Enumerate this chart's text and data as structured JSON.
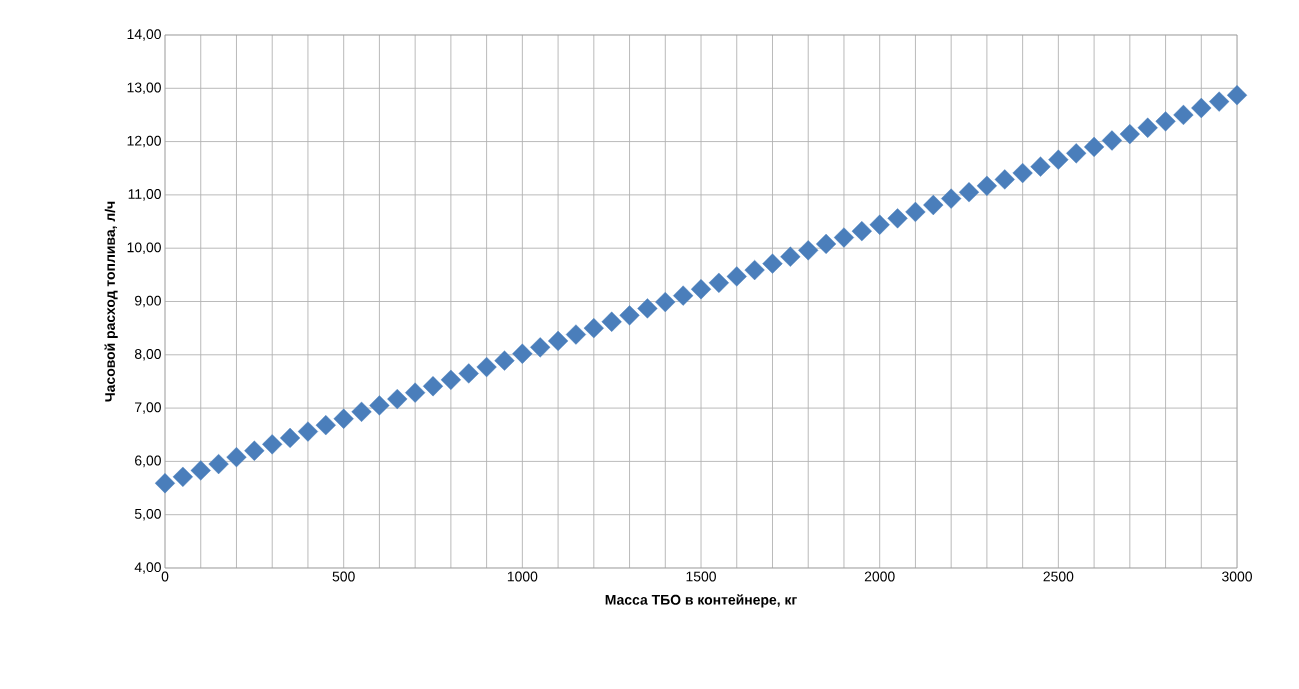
{
  "chart_data": {
    "type": "scatter",
    "xlabel": "Масса ТБО в контейнере, кг",
    "ylabel": "Часовой расход топлива, л/ч",
    "x": [
      0,
      50,
      100,
      150,
      200,
      250,
      300,
      350,
      400,
      450,
      500,
      550,
      600,
      650,
      700,
      750,
      800,
      850,
      900,
      950,
      1000,
      1050,
      1100,
      1150,
      1200,
      1250,
      1300,
      1350,
      1400,
      1450,
      1500,
      1550,
      1600,
      1650,
      1700,
      1750,
      1800,
      1850,
      1900,
      1950,
      2000,
      2050,
      2100,
      2150,
      2200,
      2250,
      2300,
      2350,
      2400,
      2450,
      2500,
      2550,
      2600,
      2650,
      2700,
      2750,
      2800,
      2850,
      2900,
      2950,
      3000
    ],
    "values": [
      5.59,
      5.71,
      5.83,
      5.95,
      6.08,
      6.2,
      6.32,
      6.44,
      6.56,
      6.68,
      6.8,
      6.93,
      7.05,
      7.17,
      7.29,
      7.41,
      7.53,
      7.65,
      7.77,
      7.89,
      8.02,
      8.14,
      8.26,
      8.38,
      8.5,
      8.62,
      8.74,
      8.87,
      8.99,
      9.11,
      9.23,
      9.35,
      9.47,
      9.59,
      9.71,
      9.84,
      9.96,
      10.08,
      10.2,
      10.32,
      10.44,
      10.56,
      10.68,
      10.81,
      10.93,
      11.05,
      11.17,
      11.29,
      11.41,
      11.53,
      11.66,
      11.78,
      11.9,
      12.02,
      12.14,
      12.26,
      12.38,
      12.5,
      12.63,
      12.75,
      12.87
    ],
    "color": "#4a7ebb",
    "marker": "diamond",
    "grid": true,
    "xlim": [
      0,
      3000
    ],
    "ylim": [
      4,
      14
    ],
    "xticks": [
      0,
      {
        "value": 100,
        "label": null
      },
      {
        "value": 200,
        "label": null
      },
      {
        "value": 300,
        "label": null
      },
      {
        "value": 400,
        "label": null
      },
      500,
      {
        "value": 600,
        "label": null
      },
      {
        "value": 700,
        "label": null
      },
      {
        "value": 800,
        "label": null
      },
      {
        "value": 900,
        "label": null
      },
      1000,
      {
        "value": 1100,
        "label": null
      },
      {
        "value": 1200,
        "label": null
      },
      {
        "value": 1300,
        "label": null
      },
      {
        "value": 1400,
        "label": null
      },
      1500,
      {
        "value": 1600,
        "label": null
      },
      {
        "value": 1700,
        "label": null
      },
      {
        "value": 1800,
        "label": null
      },
      {
        "value": 1900,
        "label": null
      },
      2000,
      {
        "value": 2100,
        "label": null
      },
      {
        "value": 2200,
        "label": null
      },
      {
        "value": 2300,
        "label": null
      },
      {
        "value": 2400,
        "label": null
      },
      2500,
      {
        "value": 2600,
        "label": null
      },
      {
        "value": 2700,
        "label": null
      },
      {
        "value": 2800,
        "label": null
      },
      {
        "value": 2900,
        "label": null
      },
      3000
    ],
    "yticks": [
      {
        "value": 4,
        "label": "4,00"
      },
      {
        "value": 5,
        "label": "5,00"
      },
      {
        "value": 6,
        "label": "6,00"
      },
      {
        "value": 7,
        "label": "7,00"
      },
      {
        "value": 8,
        "label": "8,00"
      },
      {
        "value": 9,
        "label": "9,00"
      },
      {
        "value": 10,
        "label": "10,00"
      },
      {
        "value": 11,
        "label": "11,00"
      },
      {
        "value": 12,
        "label": "12,00"
      },
      {
        "value": 13,
        "label": "13,00"
      },
      {
        "value": 14,
        "label": "14,00"
      }
    ]
  }
}
